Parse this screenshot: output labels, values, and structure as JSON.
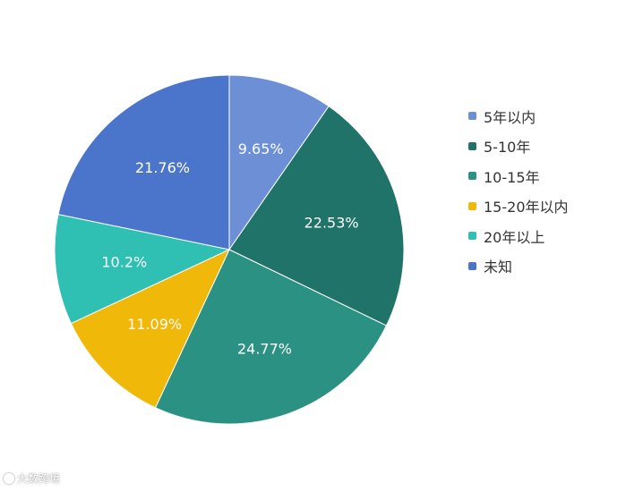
{
  "chart_data": {
    "type": "pie",
    "categories": [
      "5年以内",
      "5-10年",
      "10-15年",
      "15-20年以内",
      "20年以上",
      "未知"
    ],
    "values": [
      9.65,
      22.53,
      24.77,
      11.09,
      10.2,
      21.76
    ],
    "labels": [
      "9.65%",
      "22.53%",
      "24.77%",
      "11.09%",
      "10.2%",
      "21.76%"
    ],
    "colors": [
      "#6d8fd6",
      "#1f7369",
      "#2a9183",
      "#f0b90a",
      "#2fbfb3",
      "#4b74cb"
    ],
    "start_angle_deg": 0,
    "direction": "clockwise",
    "legend_position": "right"
  },
  "credit": {
    "text": "大数跨境",
    "icon": "copyright-icon"
  }
}
